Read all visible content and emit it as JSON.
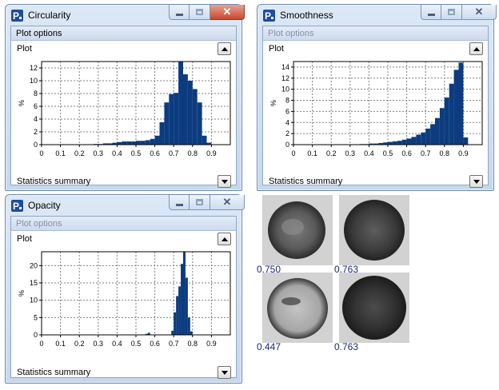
{
  "windows": [
    {
      "title": "Circularity",
      "close_active": true,
      "plot_options_label": "Plot options",
      "plot_options_dim": false,
      "plot_label": "Plot",
      "stats_label": "Statistics summary",
      "bar_color": "#0c3c7f"
    },
    {
      "title": "Smoothness",
      "close_active": false,
      "plot_options_label": "Plot options",
      "plot_options_dim": true,
      "plot_label": "Plot",
      "stats_label": "Statistics summary",
      "bar_color": "#0c3c7f"
    },
    {
      "title": "Opacity",
      "close_active": false,
      "plot_options_label": "Plot options",
      "plot_options_dim": true,
      "plot_label": "Plot",
      "stats_label": "Statistics summary",
      "bar_color": "#0c3c7f"
    }
  ],
  "chart_data": [
    {
      "type": "bar",
      "ylabel": "%",
      "xlim": [
        0,
        1.0
      ],
      "xticks": [
        "0",
        "0.1",
        "0.2",
        "0.3",
        "0.4",
        "0.5",
        "0.6",
        "0.7",
        "0.8",
        "0.9"
      ],
      "ylim": [
        0,
        13
      ],
      "yticks": [
        0,
        2,
        4,
        6,
        8,
        10,
        12
      ],
      "grid": true,
      "bin_width": 0.025,
      "bin_start": 0.275,
      "values": [
        0.1,
        0.1,
        0.2,
        0.2,
        0.3,
        0.4,
        0.5,
        0.5,
        0.5,
        0.6,
        0.6,
        0.7,
        0.9,
        1.4,
        3.5,
        6.6,
        7.9,
        8.1,
        13.0,
        11.0,
        10.0,
        8.7,
        6.6,
        1.4,
        0.3
      ]
    },
    {
      "type": "bar",
      "ylabel": "%",
      "xlim": [
        0,
        1.0
      ],
      "xticks": [
        "0",
        "0.1",
        "0.2",
        "0.3",
        "0.4",
        "0.5",
        "0.6",
        "0.7",
        "0.8",
        "0.9"
      ],
      "ylim": [
        0,
        15
      ],
      "yticks": [
        0,
        2,
        4,
        6,
        8,
        10,
        12,
        14
      ],
      "grid": true,
      "bin_width": 0.025,
      "bin_start": 0.35,
      "values": [
        0.1,
        0.1,
        0.2,
        0.2,
        0.3,
        0.4,
        0.5,
        0.6,
        0.7,
        0.9,
        1.1,
        1.4,
        1.8,
        2.2,
        2.9,
        3.7,
        4.8,
        6.6,
        8.5,
        11.0,
        13.5,
        14.8,
        1.3
      ]
    },
    {
      "type": "bar",
      "ylabel": "%",
      "xlim": [
        0,
        1.0
      ],
      "xticks": [
        "0",
        "0.1",
        "0.2",
        "0.3",
        "0.4",
        "0.5",
        "0.6",
        "0.7",
        "0.8",
        "0.9"
      ],
      "ylim": [
        0,
        24
      ],
      "yticks": [
        0,
        5,
        10,
        15,
        20
      ],
      "grid": true,
      "bin_width": 0.0125,
      "bin_start": 0.55,
      "values": [
        0.3,
        0.6,
        0,
        0,
        0,
        0,
        0,
        0,
        0,
        0,
        0,
        1.2,
        6.5,
        11.2,
        14.0,
        20.5,
        24.0,
        16.5,
        5.0,
        1.0
      ]
    }
  ],
  "thumbnails": [
    {
      "value": "0.750"
    },
    {
      "value": "0.763"
    },
    {
      "value": "0.447"
    },
    {
      "value": "0.763"
    }
  ]
}
